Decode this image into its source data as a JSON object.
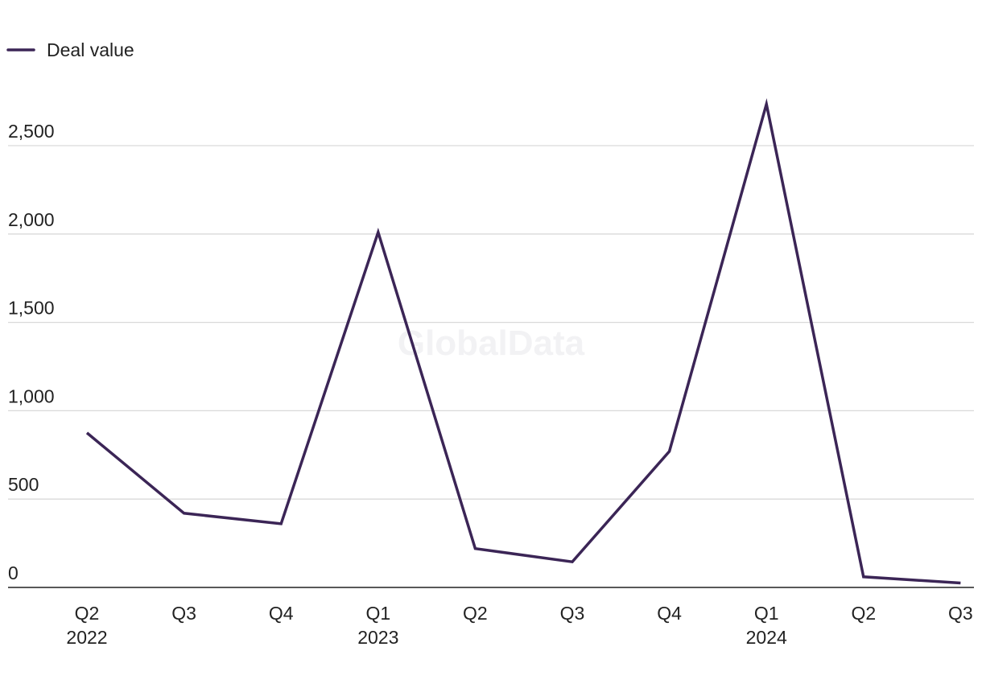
{
  "chart_data": {
    "type": "line",
    "title": "",
    "xlabel": "",
    "ylabel": "",
    "categories": [
      "Q2",
      "Q3",
      "Q4",
      "Q1",
      "Q2",
      "Q3",
      "Q4",
      "Q1",
      "Q2",
      "Q3"
    ],
    "category_years": [
      "2022",
      "",
      "",
      "2023",
      "",
      "",
      "",
      "2024",
      "",
      ""
    ],
    "series": [
      {
        "name": "Deal value",
        "values": [
          875,
          420,
          360,
          2010,
          220,
          145,
          770,
          2735,
          60,
          25
        ]
      }
    ],
    "ylim": [
      0,
      2750
    ],
    "yticks": [
      0,
      500,
      1000,
      1500,
      2000,
      2500
    ],
    "ytick_labels": [
      "0",
      "500",
      "1,000",
      "1,500",
      "2,000",
      "2,500"
    ],
    "grid": true,
    "legend_position": "top-left",
    "watermark": "GlobalData",
    "colors": {
      "line": "#3b2556",
      "grid": "#d9d9d9",
      "axis": "#222222",
      "text": "#222222"
    }
  }
}
